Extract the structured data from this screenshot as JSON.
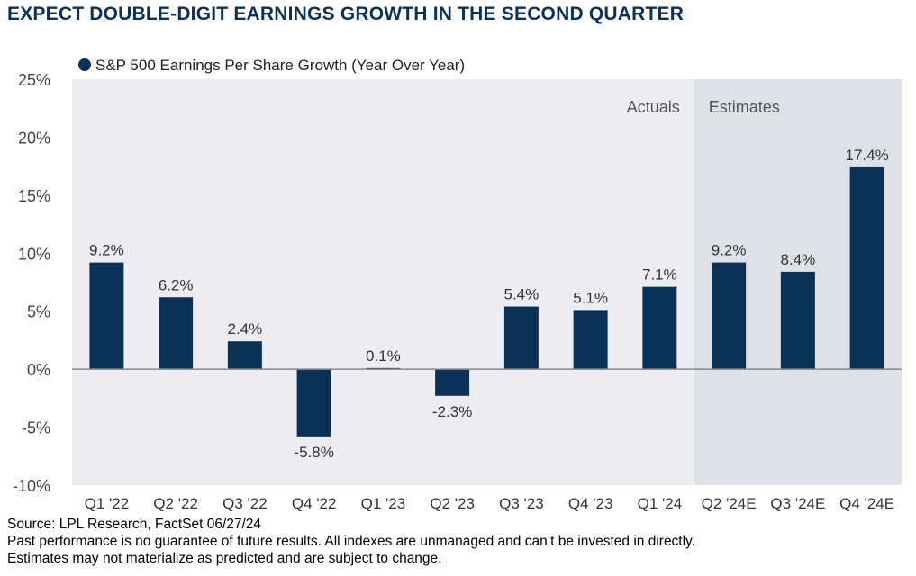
{
  "page": {
    "title": "EXPECT DOUBLE-DIGIT EARNINGS GROWTH IN THE SECOND QUARTER",
    "source": "Source: LPL Research, FactSet 06/27/24",
    "disclaimer1": "Past performance is no guarantee of future results. All indexes are unmanaged and can’t be invested in directly.",
    "disclaimer2": "Estimates may not materialize as predicted and are subject to change."
  },
  "chart_data": {
    "type": "bar",
    "title": "EXPECT DOUBLE-DIGIT EARNINGS GROWTH IN THE SECOND QUARTER",
    "legend": "S&P 500 Earnings Per Share Growth (Year Over Year)",
    "categories": [
      "Q1 '22",
      "Q2 '22",
      "Q3 '22",
      "Q4 '22",
      "Q1 '23",
      "Q2 '23",
      "Q3 '23",
      "Q4 '23",
      "Q1 '24",
      "Q2 '24E",
      "Q3 '24E",
      "Q4 '24E"
    ],
    "values": [
      9.2,
      6.2,
      2.4,
      -5.8,
      0.1,
      -2.3,
      5.4,
      5.1,
      7.1,
      9.2,
      8.4,
      17.4
    ],
    "data_labels": [
      "9.2%",
      "6.2%",
      "2.4%",
      "-5.8%",
      "0.1%",
      "-2.3%",
      "5.4%",
      "5.1%",
      "7.1%",
      "9.2%",
      "8.4%",
      "17.4%"
    ],
    "ylim": [
      -10,
      25
    ],
    "yticks": [
      25,
      20,
      15,
      10,
      5,
      0,
      -5,
      -10
    ],
    "ytick_labels": [
      "25%",
      "20%",
      "15%",
      "10%",
      "5%",
      "0%",
      "-5%",
      "-10%"
    ],
    "regions": [
      {
        "label": "Actuals",
        "from_category": 0,
        "to_category": 8
      },
      {
        "label": "Estimates",
        "from_category": 9,
        "to_category": 11
      }
    ],
    "bar_color": "#0b3157",
    "plot_bg": "#ededf1",
    "estimates_bg": "#e0e0e7",
    "grid": false
  }
}
